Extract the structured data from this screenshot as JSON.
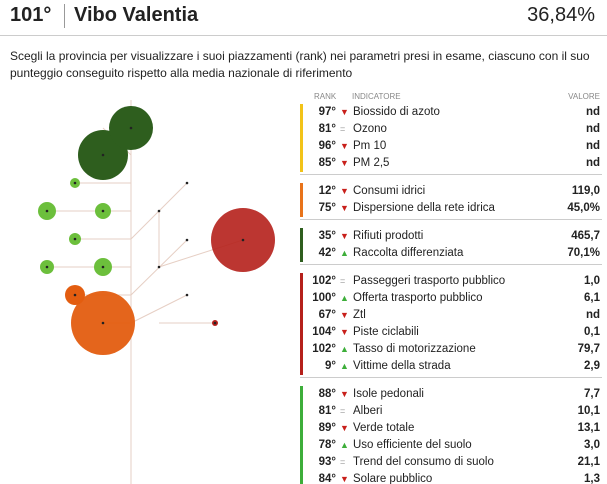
{
  "header": {
    "rank": "101°",
    "name": "Vibo Valentia",
    "score": "36,84%"
  },
  "description": "Scegli la provincia per visualizzare i suoi piazzamenti (rank) nei parametri presi in esame, ciascuno con il suo punteggio conseguito rispetto alla media nazionale di riferimento",
  "table": {
    "columns": [
      "RANK",
      "INDICATORE",
      "VALORE"
    ],
    "groups": [
      {
        "color": "#f2c318",
        "rows": [
          [
            "97°",
            "▼",
            "Biossido di azoto",
            "nd"
          ],
          [
            "81°",
            "=",
            "Ozono",
            "nd"
          ],
          [
            "96°",
            "▼",
            "Pm 10",
            "nd"
          ],
          [
            "85°",
            "▼",
            "PM 2,5",
            "nd"
          ]
        ]
      },
      {
        "color": "#e8731a",
        "rows": [
          [
            "12°",
            "▼",
            "Consumi idrici",
            "119,0"
          ],
          [
            "75°",
            "▼",
            "Dispersione della rete idrica",
            "45,0%"
          ]
        ]
      },
      {
        "color": "#2e5e1e",
        "rows": [
          [
            "35°",
            "▼",
            "Rifiuti prodotti",
            "465,7"
          ],
          [
            "42°",
            "▲",
            "Raccolta differenziata",
            "70,1%"
          ]
        ]
      },
      {
        "color": "#b5201b",
        "rows": [
          [
            "102°",
            "=",
            "Passeggeri trasporto pubblico",
            "1,0"
          ],
          [
            "100°",
            "▲",
            "Offerta trasporto pubblico",
            "6,1"
          ],
          [
            "67°",
            "▼",
            "Ztl",
            "nd"
          ],
          [
            "104°",
            "▼",
            "Piste ciclabili",
            "0,1"
          ],
          [
            "102°",
            "▲",
            "Tasso di motorizzazione",
            "79,7"
          ],
          [
            "9°",
            "▲",
            "Vittime della strada",
            "2,9"
          ]
        ]
      },
      {
        "color": "#3dae3a",
        "rows": [
          [
            "88°",
            "▼",
            "Isole pedonali",
            "7,7"
          ],
          [
            "81°",
            "=",
            "Alberi",
            "10,1"
          ],
          [
            "89°",
            "▼",
            "Verde totale",
            "13,1"
          ],
          [
            "78°",
            "▲",
            "Uso efficiente del suolo",
            "3,0"
          ],
          [
            "93°",
            "=",
            "Trend del consumo di suolo",
            "21,1"
          ],
          [
            "84°",
            "▼",
            "Solare pubblico",
            "1,3"
          ]
        ]
      }
    ]
  }
}
